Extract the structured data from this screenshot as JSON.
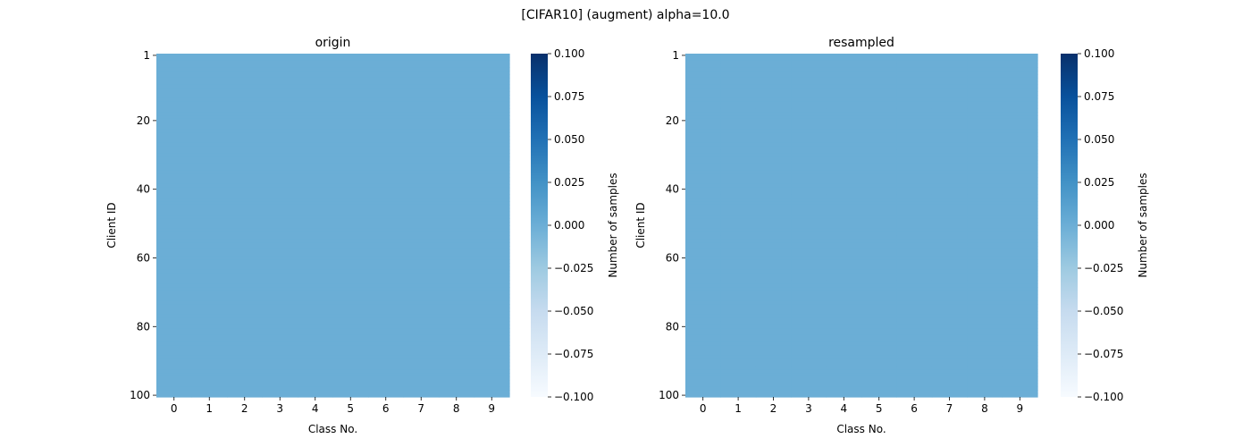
{
  "suptitle": "[CIFAR10] (augment) alpha=10.0",
  "chart_data": [
    {
      "type": "heatmap",
      "title": "origin",
      "xlabel": "Class No.",
      "ylabel": "Client ID",
      "x_categories": [
        "0",
        "1",
        "2",
        "3",
        "4",
        "5",
        "6",
        "7",
        "8",
        "9"
      ],
      "y_tick_labels": [
        "1",
        "20",
        "40",
        "60",
        "80",
        "100"
      ],
      "y_tick_values": [
        1,
        20,
        40,
        60,
        80,
        100
      ],
      "rows": 100,
      "uniform_value": 0,
      "colorbar": {
        "label": "Number of samples",
        "range": [
          -0.1,
          0.1
        ],
        "ticks": [
          "0.100",
          "0.075",
          "0.050",
          "0.025",
          "0.000",
          "−0.025",
          "−0.050",
          "−0.075",
          "−0.100"
        ],
        "tick_values": [
          0.1,
          0.075,
          0.05,
          0.025,
          0.0,
          -0.025,
          -0.05,
          -0.075,
          -0.1
        ],
        "colormap": "Blues"
      }
    },
    {
      "type": "heatmap",
      "title": "resampled",
      "xlabel": "Class No.",
      "ylabel": "Client ID",
      "x_categories": [
        "0",
        "1",
        "2",
        "3",
        "4",
        "5",
        "6",
        "7",
        "8",
        "9"
      ],
      "y_tick_labels": [
        "1",
        "20",
        "40",
        "60",
        "80",
        "100"
      ],
      "y_tick_values": [
        1,
        20,
        40,
        60,
        80,
        100
      ],
      "rows": 100,
      "uniform_value": 0,
      "colorbar": {
        "label": "Number of samples",
        "range": [
          -0.1,
          0.1
        ],
        "ticks": [
          "0.100",
          "0.075",
          "0.050",
          "0.025",
          "0.000",
          "−0.025",
          "−0.050",
          "−0.075",
          "−0.100"
        ],
        "tick_values": [
          0.1,
          0.075,
          0.05,
          0.025,
          0.0,
          -0.025,
          -0.05,
          -0.075,
          -0.1
        ],
        "colormap": "Blues"
      }
    }
  ],
  "colors": {
    "cell": "#6baed6",
    "blues_stops": [
      "#f7fbff",
      "#deebf7",
      "#c6dbef",
      "#9ecae1",
      "#6baed6",
      "#4292c6",
      "#2171b5",
      "#08519c",
      "#08306b"
    ]
  }
}
